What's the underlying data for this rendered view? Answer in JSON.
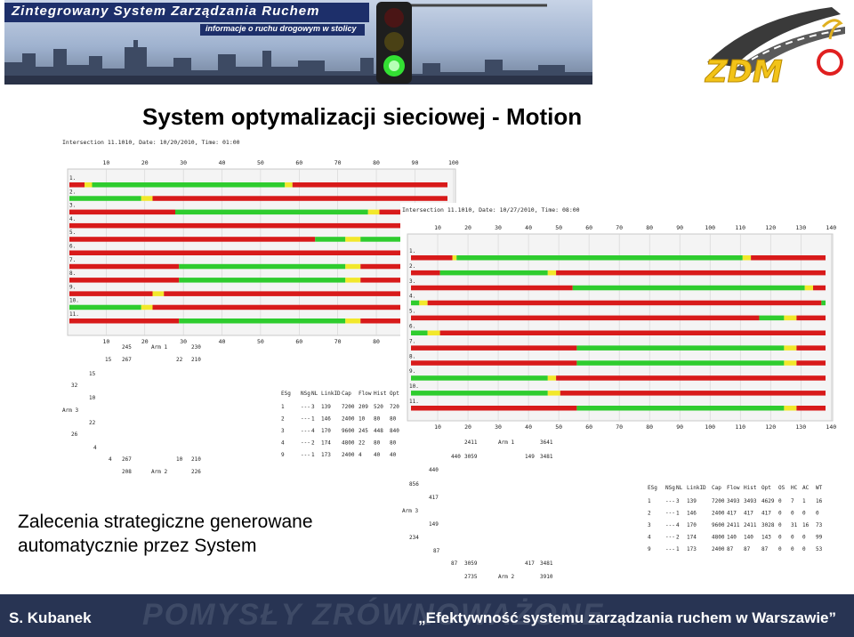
{
  "banner": {
    "title": "Zintegrowany System Zarządzania Ruchem",
    "subtitle": "informacje o ruchu drogowym w stolicy",
    "logo_text": "ZDM"
  },
  "heading": "System optymalizacji sieciowej - Motion",
  "caption": {
    "line1": "Zalecenia strategiczne generowane",
    "line2": "automatycznie przez System"
  },
  "footer": {
    "author": "S. Kubanek",
    "title": "„Efektywność systemu zarządzania ruchem w Warszawie”"
  },
  "colors": {
    "green": "#2ecc2e",
    "red": "#d81a1a",
    "yellow": "#f2e82b",
    "footer": "#283453"
  },
  "panel1": {
    "header": "Intersection 11.1010, Date: 10/20/2010, Time: 01:00",
    "ticks": [
      "10",
      "20",
      "30",
      "40",
      "50",
      "60",
      "70",
      "80",
      "90",
      "100"
    ],
    "rows": [
      {
        "label": "1.",
        "segs": [
          [
            "r",
            0,
            0.04
          ],
          [
            "y",
            0.04,
            0.06
          ],
          [
            "g",
            0.06,
            0.57
          ],
          [
            "y",
            0.57,
            0.59
          ],
          [
            "r",
            0.59,
            1
          ]
        ]
      },
      {
        "label": "2.",
        "segs": [
          [
            "g",
            0,
            0.19
          ],
          [
            "y",
            0.19,
            0.22
          ],
          [
            "r",
            0.22,
            1
          ]
        ]
      },
      {
        "label": "3.",
        "segs": [
          [
            "r",
            0,
            0.28
          ],
          [
            "g",
            0.28,
            0.79
          ],
          [
            "y",
            0.79,
            0.82
          ],
          [
            "r",
            0.82,
            1
          ]
        ]
      },
      {
        "label": "4.",
        "segs": [
          [
            "r",
            0,
            1
          ]
        ]
      },
      {
        "label": "5.",
        "segs": [
          [
            "r",
            0,
            0.65
          ],
          [
            "g",
            0.65,
            0.73
          ],
          [
            "y",
            0.73,
            0.77
          ],
          [
            "g",
            0.77,
            1
          ]
        ]
      },
      {
        "label": "6.",
        "segs": [
          [
            "r",
            0,
            1
          ]
        ]
      },
      {
        "label": "7.",
        "segs": [
          [
            "r",
            0,
            0.29
          ],
          [
            "g",
            0.29,
            0.73
          ],
          [
            "y",
            0.73,
            0.77
          ],
          [
            "r",
            0.77,
            1
          ]
        ]
      },
      {
        "label": "8.",
        "segs": [
          [
            "r",
            0,
            0.29
          ],
          [
            "g",
            0.29,
            0.73
          ],
          [
            "y",
            0.73,
            0.77
          ],
          [
            "r",
            0.77,
            1
          ]
        ]
      },
      {
        "label": "9.",
        "segs": [
          [
            "r",
            0,
            0.22
          ],
          [
            "y",
            0.22,
            0.25
          ],
          [
            "r",
            0.25,
            1
          ]
        ]
      },
      {
        "label": "10.",
        "segs": [
          [
            "g",
            0,
            0.19
          ],
          [
            "y",
            0.19,
            0.22
          ],
          [
            "r",
            0.22,
            1
          ]
        ]
      },
      {
        "label": "11.",
        "segs": [
          [
            "r",
            0,
            0.29
          ],
          [
            "g",
            0.29,
            0.73
          ],
          [
            "y",
            0.73,
            0.77
          ],
          [
            "r",
            0.77,
            1
          ]
        ]
      }
    ],
    "diagram_labels": [
      {
        "text": "245",
        "x": 67,
        "y": 240
      },
      {
        "text": "Arm 1",
        "x": 100,
        "y": 240
      },
      {
        "text": "230",
        "x": 145,
        "y": 240
      },
      {
        "text": "15",
        "x": 48,
        "y": 254
      },
      {
        "text": "267",
        "x": 67,
        "y": 254
      },
      {
        "text": "22",
        "x": 128,
        "y": 254
      },
      {
        "text": "210",
        "x": 145,
        "y": 254
      },
      {
        "text": "15",
        "x": 30,
        "y": 270
      },
      {
        "text": "32",
        "x": 10,
        "y": 283
      },
      {
        "text": "10",
        "x": 30,
        "y": 297
      },
      {
        "text": "Arm 3",
        "x": 0,
        "y": 311
      },
      {
        "text": "22",
        "x": 30,
        "y": 325
      },
      {
        "text": "26",
        "x": 10,
        "y": 338
      },
      {
        "text": "4",
        "x": 35,
        "y": 353
      },
      {
        "text": "4",
        "x": 52,
        "y": 366
      },
      {
        "text": "267",
        "x": 67,
        "y": 366
      },
      {
        "text": "10",
        "x": 128,
        "y": 366
      },
      {
        "text": "210",
        "x": 145,
        "y": 366
      },
      {
        "text": "208",
        "x": 67,
        "y": 380
      },
      {
        "text": "Arm 2",
        "x": 100,
        "y": 380
      },
      {
        "text": "226",
        "x": 145,
        "y": 380
      }
    ],
    "table_header": [
      "ESg",
      "NSg",
      "NL",
      "LinkID",
      "Cap",
      "Flow",
      "Hist",
      "Opt"
    ],
    "table_rows": [
      [
        "1",
        "---",
        "3",
        "139",
        "7200",
        "209",
        "520",
        "720"
      ],
      [
        "2",
        "---",
        "1",
        "146",
        "2400",
        "10",
        "80",
        "80"
      ],
      [
        "3",
        "---",
        "4",
        "170",
        "9600",
        "245",
        "448",
        "840"
      ],
      [
        "4",
        "---",
        "2",
        "174",
        "4800",
        "22",
        "80",
        "80"
      ],
      [
        "9",
        "---",
        "1",
        "173",
        "2400",
        "4",
        "40",
        "40"
      ]
    ]
  },
  "panel2": {
    "header": "Intersection 11.1010, Date: 10/27/2010, Time: 08:00",
    "ticks": [
      "10",
      "20",
      "30",
      "40",
      "50",
      "60",
      "70",
      "80",
      "90",
      "100",
      "110",
      "120",
      "130",
      "140"
    ],
    "rows": [
      {
        "label": "1.",
        "segs": [
          [
            "r",
            0,
            0.1
          ],
          [
            "y",
            0.1,
            0.11
          ],
          [
            "g",
            0.11,
            0.8
          ],
          [
            "y",
            0.8,
            0.82
          ],
          [
            "r",
            0.82,
            1
          ]
        ]
      },
      {
        "label": "2.",
        "segs": [
          [
            "r",
            0,
            0.07
          ],
          [
            "g",
            0.07,
            0.33
          ],
          [
            "y",
            0.33,
            0.35
          ],
          [
            "r",
            0.35,
            1
          ]
        ]
      },
      {
        "label": "3.",
        "segs": [
          [
            "r",
            0,
            0.39
          ],
          [
            "g",
            0.39,
            0.95
          ],
          [
            "y",
            0.95,
            0.97
          ],
          [
            "r",
            0.97,
            1
          ]
        ]
      },
      {
        "label": "4.",
        "segs": [
          [
            "g",
            0,
            0.02
          ],
          [
            "y",
            0.02,
            0.04
          ],
          [
            "r",
            0.04,
            0.99
          ],
          [
            "g",
            0.99,
            1
          ]
        ]
      },
      {
        "label": "5.",
        "segs": [
          [
            "r",
            0,
            0.84
          ],
          [
            "g",
            0.84,
            0.9
          ],
          [
            "y",
            0.9,
            0.93
          ],
          [
            "r",
            0.93,
            1
          ]
        ]
      },
      {
        "label": "6.",
        "segs": [
          [
            "g",
            0,
            0.04
          ],
          [
            "y",
            0.04,
            0.07
          ],
          [
            "r",
            0.07,
            1
          ]
        ]
      },
      {
        "label": "7.",
        "segs": [
          [
            "r",
            0,
            0.4
          ],
          [
            "g",
            0.4,
            0.9
          ],
          [
            "y",
            0.9,
            0.93
          ],
          [
            "r",
            0.93,
            1
          ]
        ]
      },
      {
        "label": "8.",
        "segs": [
          [
            "r",
            0,
            0.4
          ],
          [
            "g",
            0.4,
            0.9
          ],
          [
            "y",
            0.9,
            0.93
          ],
          [
            "r",
            0.93,
            1
          ]
        ]
      },
      {
        "label": "9.",
        "segs": [
          [
            "g",
            0,
            0.33
          ],
          [
            "y",
            0.33,
            0.35
          ],
          [
            "r",
            0.35,
            1
          ]
        ]
      },
      {
        "label": "10.",
        "segs": [
          [
            "g",
            0,
            0.33
          ],
          [
            "y",
            0.33,
            0.36
          ],
          [
            "r",
            0.36,
            1
          ]
        ]
      },
      {
        "label": "11.",
        "segs": [
          [
            "r",
            0,
            0.4
          ],
          [
            "g",
            0.4,
            0.9
          ],
          [
            "y",
            0.9,
            0.93
          ],
          [
            "r",
            0.93,
            1
          ]
        ]
      }
    ],
    "diagram_labels": [
      {
        "text": "2411",
        "x": 70,
        "y": 271
      },
      {
        "text": "Arm 1",
        "x": 108,
        "y": 271
      },
      {
        "text": "3641",
        "x": 155,
        "y": 271
      },
      {
        "text": "440",
        "x": 55,
        "y": 287
      },
      {
        "text": "3059",
        "x": 70,
        "y": 287
      },
      {
        "text": "149",
        "x": 138,
        "y": 287
      },
      {
        "text": "3481",
        "x": 155,
        "y": 287
      },
      {
        "text": "440",
        "x": 30,
        "y": 302
      },
      {
        "text": "856",
        "x": 8,
        "y": 318
      },
      {
        "text": "417",
        "x": 30,
        "y": 333
      },
      {
        "text": "Arm 3",
        "x": 0,
        "y": 348
      },
      {
        "text": "149",
        "x": 30,
        "y": 363
      },
      {
        "text": "234",
        "x": 8,
        "y": 378
      },
      {
        "text": "87",
        "x": 35,
        "y": 393
      },
      {
        "text": "87",
        "x": 55,
        "y": 407
      },
      {
        "text": "3059",
        "x": 70,
        "y": 407
      },
      {
        "text": "417",
        "x": 138,
        "y": 407
      },
      {
        "text": "3481",
        "x": 155,
        "y": 407
      },
      {
        "text": "2735",
        "x": 70,
        "y": 422
      },
      {
        "text": "Arm 2",
        "x": 108,
        "y": 422
      },
      {
        "text": "3910",
        "x": 155,
        "y": 422
      }
    ],
    "table_header": [
      "ESg",
      "NSg",
      "NL",
      "LinkID",
      "Cap",
      "Flow",
      "Hist",
      "Opt",
      "OS",
      "HC",
      "AC",
      "WT"
    ],
    "table_rows": [
      [
        "1",
        "---",
        "3",
        "139",
        "7200",
        "3493",
        "3493",
        "4629",
        "0",
        "7",
        "1",
        "16"
      ],
      [
        "2",
        "---",
        "1",
        "146",
        "2400",
        "417",
        "417",
        "417",
        "0",
        "0",
        "0",
        "0"
      ],
      [
        "3",
        "---",
        "4",
        "170",
        "9600",
        "2411",
        "2411",
        "3028",
        "0",
        "31",
        "16",
        "73"
      ],
      [
        "4",
        "---",
        "2",
        "174",
        "4800",
        "140",
        "140",
        "143",
        "0",
        "0",
        "0",
        "99"
      ],
      [
        "9",
        "---",
        "1",
        "173",
        "2400",
        "87",
        "87",
        "87",
        "0",
        "0",
        "0",
        "53"
      ]
    ]
  }
}
